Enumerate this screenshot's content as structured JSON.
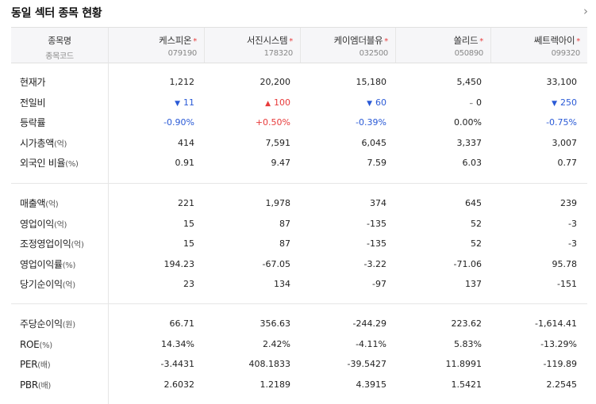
{
  "title": "동일 섹터 종목 현황",
  "more_icon": "›",
  "header": {
    "name_label": "종목명",
    "code_label": "종목코드"
  },
  "companies": [
    {
      "name": "케스피온",
      "code": "079190"
    },
    {
      "name": "서진시스템",
      "code": "178320"
    },
    {
      "name": "케이엠더블유",
      "code": "032500"
    },
    {
      "name": "쏠리드",
      "code": "050890"
    },
    {
      "name": "쎄트렉아이",
      "code": "099320"
    }
  ],
  "star": "*",
  "group1": [
    {
      "label": "현재가",
      "unit": "",
      "values": [
        "1,212",
        "20,200",
        "15,180",
        "5,450",
        "33,100"
      ]
    },
    {
      "label": "전일비",
      "unit": "",
      "values": [
        "11",
        "100",
        "60",
        "0",
        "250"
      ],
      "dirs": [
        "down",
        "up",
        "down",
        "flat",
        "down"
      ]
    },
    {
      "label": "등락률",
      "unit": "",
      "values": [
        "-0.90%",
        "+0.50%",
        "-0.39%",
        "0.00%",
        "-0.75%"
      ],
      "dirs": [
        "down",
        "up",
        "down",
        "flat",
        "down"
      ]
    },
    {
      "label": "시가총액",
      "unit": "(억)",
      "values": [
        "414",
        "7,591",
        "6,045",
        "3,337",
        "3,007"
      ]
    },
    {
      "label": "외국인 비율",
      "unit": "(%)",
      "values": [
        "0.91",
        "9.47",
        "7.59",
        "6.03",
        "0.77"
      ]
    }
  ],
  "group2": [
    {
      "label": "매출액",
      "unit": "(억)",
      "values": [
        "221",
        "1,978",
        "374",
        "645",
        "239"
      ]
    },
    {
      "label": "영업이익",
      "unit": "(억)",
      "values": [
        "15",
        "87",
        "-135",
        "52",
        "-3"
      ]
    },
    {
      "label": "조정영업이익",
      "unit": "(억)",
      "values": [
        "15",
        "87",
        "-135",
        "52",
        "-3"
      ]
    },
    {
      "label": "영업이익률",
      "unit": "(%)",
      "values": [
        "194.23",
        "-67.05",
        "-3.22",
        "-71.06",
        "95.78"
      ]
    },
    {
      "label": "당기순이익",
      "unit": "(억)",
      "values": [
        "23",
        "134",
        "-97",
        "137",
        "-151"
      ]
    }
  ],
  "group3": [
    {
      "label": "주당순이익",
      "unit": "(원)",
      "values": [
        "66.71",
        "356.63",
        "-244.29",
        "223.62",
        "-1,614.41"
      ]
    },
    {
      "label": "ROE",
      "unit": "(%)",
      "values": [
        "14.34%",
        "2.42%",
        "-4.11%",
        "5.83%",
        "-13.29%"
      ]
    },
    {
      "label": "PER",
      "unit": "(배)",
      "values": [
        "-3.4431",
        "408.1833",
        "-39.5427",
        "11.8991",
        "-119.89"
      ]
    },
    {
      "label": "PBR",
      "unit": "(배)",
      "values": [
        "2.6032",
        "1.2189",
        "4.3915",
        "1.5421",
        "2.2545"
      ]
    }
  ]
}
